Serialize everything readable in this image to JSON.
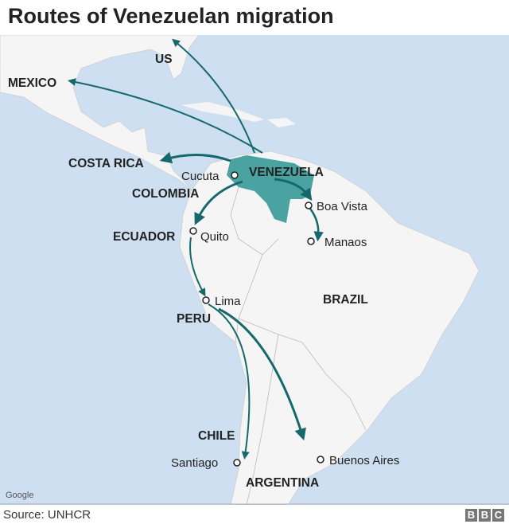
{
  "title": "Routes of Venezuelan migration",
  "source": "Source: UNHCR",
  "logo": "BBC",
  "attribution": "Google",
  "colors": {
    "ocean": "#cddff0",
    "land": "#f5f5f5",
    "venezuela": "#4aa3a0",
    "arrow": "#15696b"
  },
  "countries": [
    "US",
    "MEXICO",
    "COSTA RICA",
    "COLOMBIA",
    "VENEZUELA",
    "ECUADOR",
    "PERU",
    "BRAZIL",
    "CHILE",
    "ARGENTINA"
  ],
  "cities": [
    "Cucuta",
    "Boa Vista",
    "Quito",
    "Manaos",
    "Lima",
    "Santiago",
    "Buenos Aires"
  ],
  "routes": [
    {
      "from": "Venezuela",
      "to": "US"
    },
    {
      "from": "Venezuela",
      "to": "Mexico"
    },
    {
      "from": "Venezuela",
      "to": "Costa Rica"
    },
    {
      "from": "Venezuela",
      "to": "Ecuador"
    },
    {
      "from": "Venezuela",
      "to": "Boa Vista"
    },
    {
      "from": "Boa Vista",
      "to": "Manaos"
    },
    {
      "from": "Quito",
      "to": "Lima"
    },
    {
      "from": "Lima",
      "to": "Santiago"
    },
    {
      "from": "Lima",
      "to": "Argentina"
    }
  ]
}
